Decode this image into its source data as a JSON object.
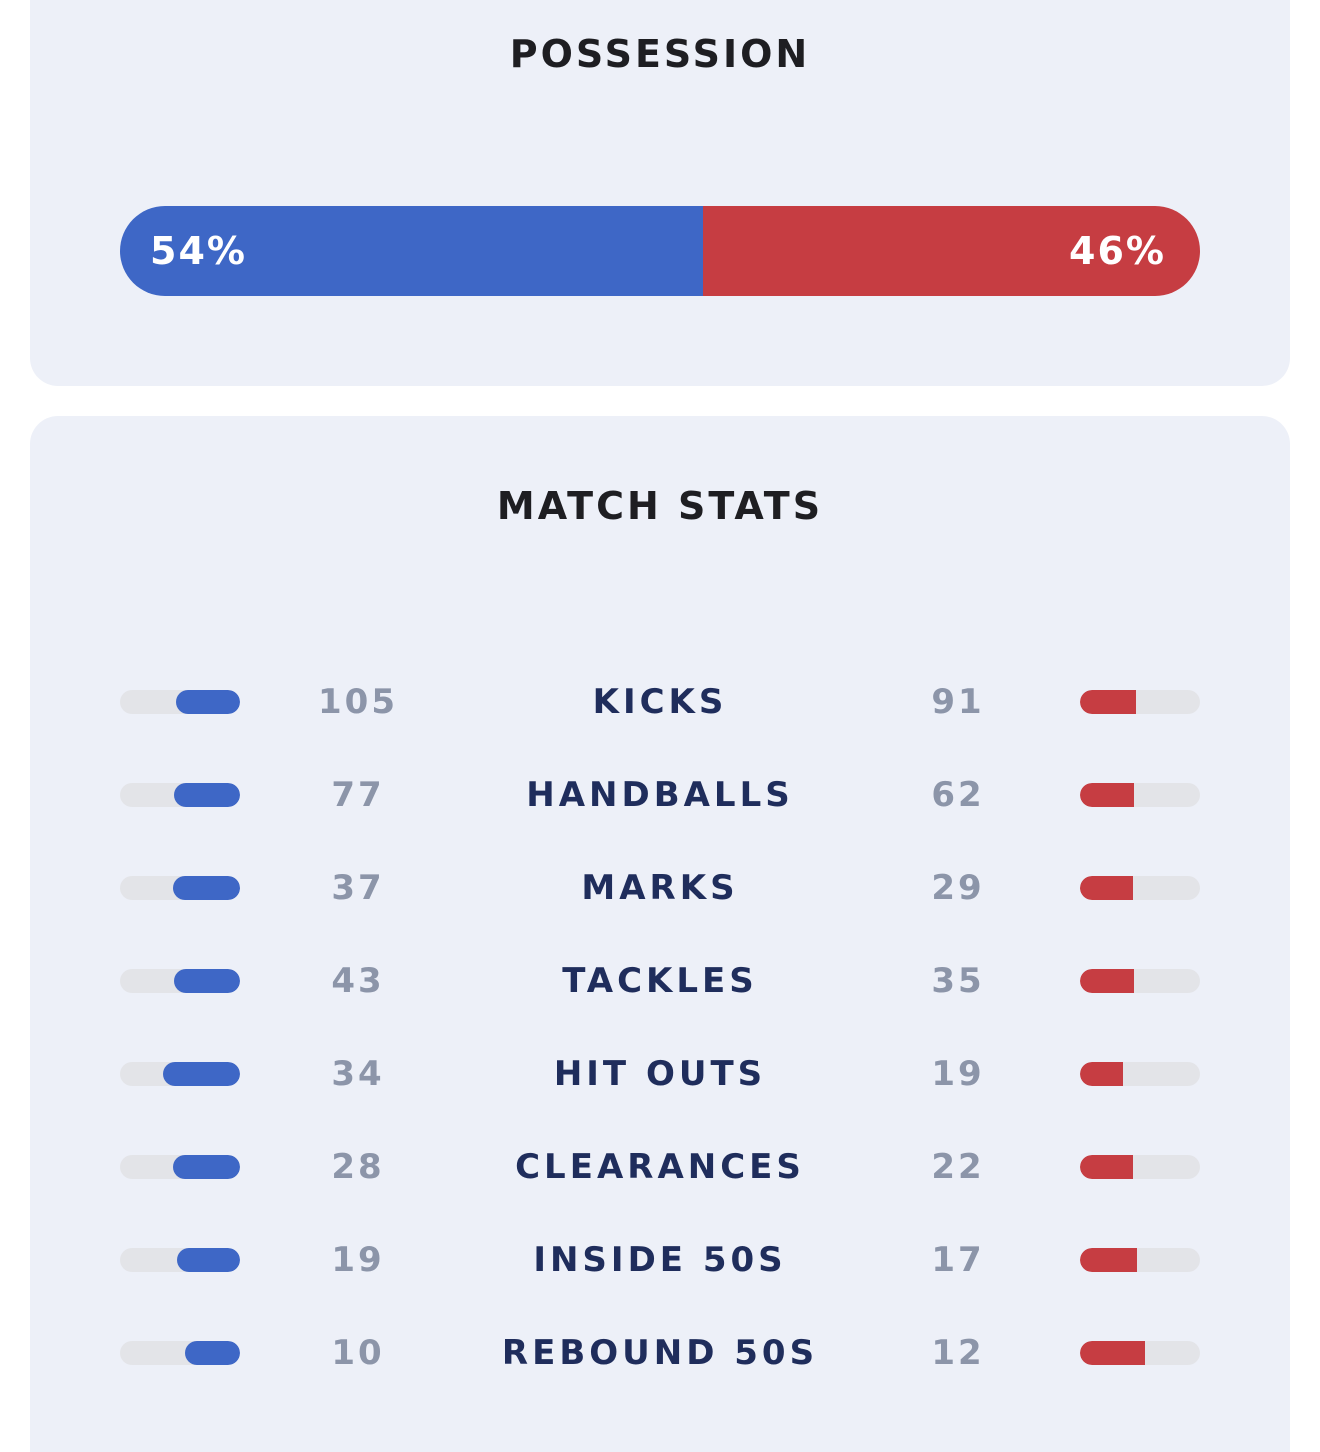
{
  "colors": {
    "home": "#3e67c6",
    "away": "#c63d42"
  },
  "possession": {
    "title": "POSSESSION",
    "home_percent": 54,
    "away_percent": 46,
    "home_label": "54%",
    "away_label": "46%"
  },
  "match_stats": {
    "title": "MATCH STATS",
    "rows": [
      {
        "label": "KICKS",
        "home": 105,
        "away": 91,
        "home_text": "105",
        "away_text": "91"
      },
      {
        "label": "HANDBALLS",
        "home": 77,
        "away": 62,
        "home_text": "77",
        "away_text": "62"
      },
      {
        "label": "MARKS",
        "home": 37,
        "away": 29,
        "home_text": "37",
        "away_text": "29"
      },
      {
        "label": "TACKLES",
        "home": 43,
        "away": 35,
        "home_text": "43",
        "away_text": "35"
      },
      {
        "label": "HIT OUTS",
        "home": 34,
        "away": 19,
        "home_text": "34",
        "away_text": "19"
      },
      {
        "label": "CLEARANCES",
        "home": 28,
        "away": 22,
        "home_text": "28",
        "away_text": "22"
      },
      {
        "label": "INSIDE 50S",
        "home": 19,
        "away": 17,
        "home_text": "19",
        "away_text": "17"
      },
      {
        "label": "REBOUND 50S",
        "home": 10,
        "away": 12,
        "home_text": "10",
        "away_text": "12"
      }
    ]
  }
}
